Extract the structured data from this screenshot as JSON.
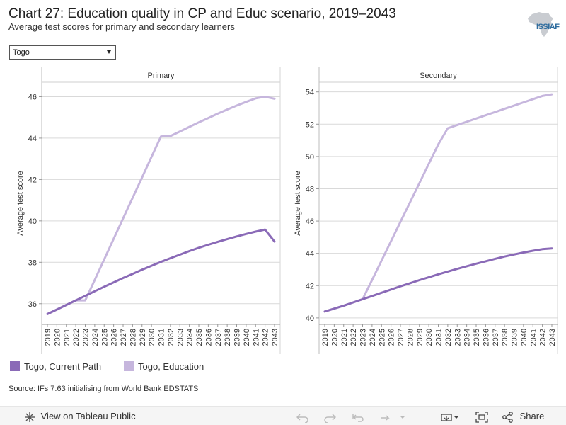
{
  "header": {
    "title": "Chart 27: Education quality in CP and Educ scenario, 2019–2043",
    "subtitle": "Average test scores for primary and secondary learners"
  },
  "logo": {
    "text": "ISSIAF"
  },
  "filter": {
    "selected": "Togo"
  },
  "legend": {
    "items": [
      {
        "label": "Togo, Current Path",
        "color": "#8a6ab7"
      },
      {
        "label": "Togo, Education",
        "color": "#c6b6dd"
      }
    ]
  },
  "source": "Source: IFs 7.63 initialising from World Bank EDSTATS",
  "toolbar": {
    "view_label": "View on Tableau Public",
    "share_label": "Share"
  },
  "chart_data": [
    {
      "type": "line",
      "title": "Primary",
      "ylabel": "Average test score",
      "ylim": [
        35,
        46.7
      ],
      "yticks": [
        36,
        38,
        40,
        42,
        44,
        46
      ],
      "x": [
        2019,
        2020,
        2021,
        2022,
        2023,
        2024,
        2025,
        2026,
        2027,
        2028,
        2029,
        2030,
        2031,
        2032,
        2033,
        2034,
        2035,
        2036,
        2037,
        2038,
        2039,
        2040,
        2041,
        2042,
        2043
      ],
      "series": [
        {
          "name": "Togo, Current Path",
          "color": "#8a6ab7",
          "values": [
            35.5,
            35.72,
            35.94,
            36.16,
            36.38,
            36.6,
            36.82,
            37.03,
            37.24,
            37.44,
            37.64,
            37.83,
            38.02,
            38.2,
            38.37,
            38.54,
            38.7,
            38.85,
            38.99,
            39.12,
            39.25,
            39.37,
            39.48,
            39.58,
            39.0
          ]
        },
        {
          "name": "Togo, Education",
          "color": "#c6b6dd",
          "values": [
            35.5,
            35.72,
            35.94,
            36.16,
            36.16,
            37.15,
            38.14,
            39.13,
            40.12,
            41.11,
            42.1,
            43.09,
            44.08,
            44.1,
            44.32,
            44.54,
            44.76,
            44.97,
            45.18,
            45.38,
            45.57,
            45.75,
            45.92,
            46.0,
            45.9
          ]
        }
      ]
    },
    {
      "type": "line",
      "title": "Secondary",
      "ylabel": "Average test score",
      "ylim": [
        39.6,
        54.6
      ],
      "yticks": [
        40,
        42,
        44,
        46,
        48,
        50,
        52,
        54
      ],
      "x": [
        2019,
        2020,
        2021,
        2022,
        2023,
        2024,
        2025,
        2026,
        2027,
        2028,
        2029,
        2030,
        2031,
        2032,
        2033,
        2034,
        2035,
        2036,
        2037,
        2038,
        2039,
        2040,
        2041,
        2042,
        2043
      ],
      "series": [
        {
          "name": "Togo, Current Path",
          "color": "#8a6ab7",
          "values": [
            40.4,
            40.58,
            40.76,
            40.96,
            41.16,
            41.36,
            41.56,
            41.76,
            41.96,
            42.15,
            42.34,
            42.52,
            42.7,
            42.87,
            43.04,
            43.2,
            43.36,
            43.51,
            43.66,
            43.8,
            43.93,
            44.05,
            44.16,
            44.26,
            44.3
          ]
        },
        {
          "name": "Togo, Education",
          "color": "#c6b6dd",
          "values": [
            40.4,
            40.58,
            40.76,
            40.96,
            41.16,
            42.35,
            43.55,
            44.75,
            45.95,
            47.15,
            48.35,
            49.55,
            50.75,
            51.75,
            51.95,
            52.15,
            52.35,
            52.55,
            52.75,
            52.95,
            53.15,
            53.35,
            53.55,
            53.75,
            53.85
          ]
        }
      ]
    }
  ]
}
